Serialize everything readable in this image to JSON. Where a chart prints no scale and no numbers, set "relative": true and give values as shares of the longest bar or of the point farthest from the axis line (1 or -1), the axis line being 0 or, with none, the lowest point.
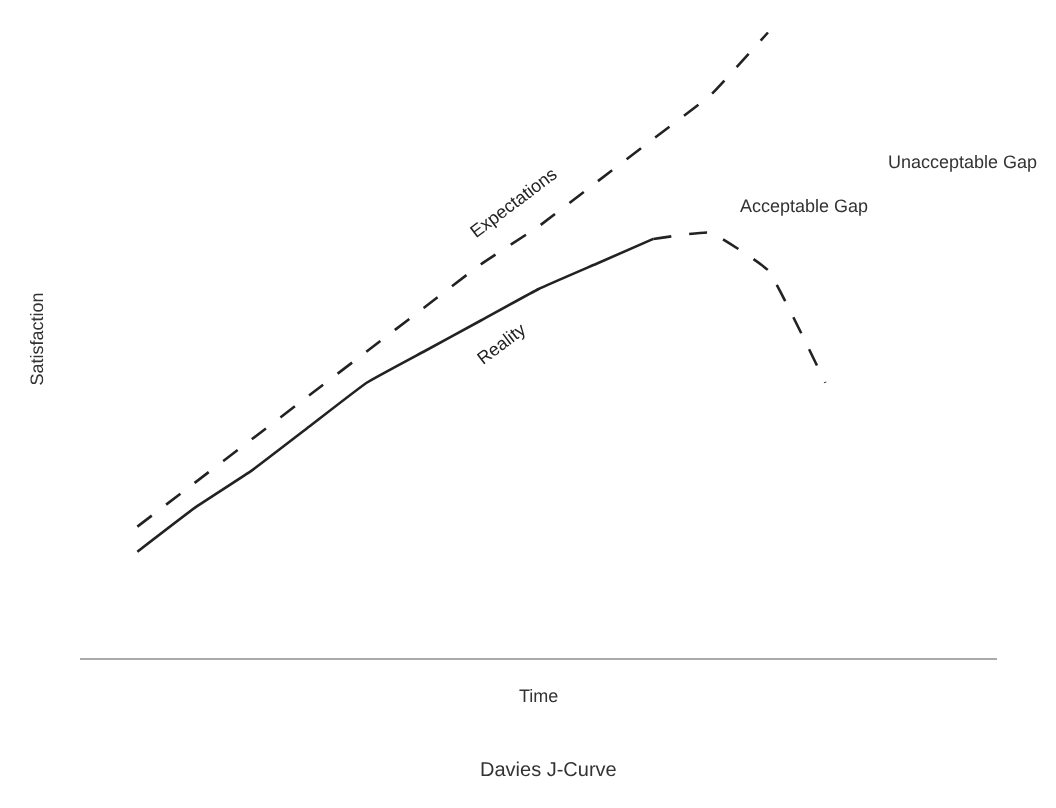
{
  "chart_data": {
    "type": "line",
    "title": "Davies J-Curve",
    "xlabel": "Time",
    "ylabel": "Satisfaction",
    "relative": true,
    "legend": false,
    "tick_labels": false,
    "categories": [
      null,
      null,
      null,
      null,
      null,
      null,
      null,
      null,
      null,
      null,
      null,
      null,
      null,
      null,
      null,
      null,
      null
    ],
    "series": [
      {
        "name": "Expectations",
        "color": "#222222",
        "line_style": "dashed",
        "values": [
          null,
          0.21,
          0.28,
          0.35,
          0.42,
          0.49,
          0.56,
          0.63,
          0.69,
          0.76,
          0.83,
          0.9,
          1.0,
          null,
          null,
          null,
          null
        ]
      },
      {
        "name": "Reality",
        "color": "#222222",
        "line_style": "solid",
        "values": [
          null,
          0.17,
          0.24,
          0.3,
          0.37,
          0.44,
          0.49,
          0.54,
          0.59,
          0.63,
          0.67,
          null,
          null,
          null,
          null,
          null,
          null
        ]
      },
      {
        "color": "#222222",
        "line_style": "dashed",
        "values": [
          null,
          null,
          null,
          null,
          null,
          null,
          null,
          null,
          null,
          null,
          0.67,
          0.68,
          0.62,
          0.44,
          null,
          null,
          null
        ]
      }
    ],
    "annotations": [
      "Acceptable Gap",
      "Unacceptable Gap"
    ]
  }
}
